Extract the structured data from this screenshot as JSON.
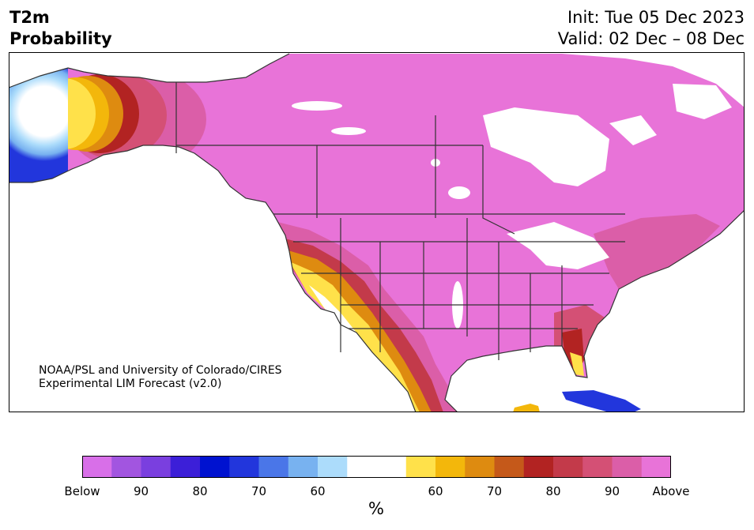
{
  "header": {
    "variable": "T2m",
    "product": "Probability",
    "init": "Init: Tue 05 Dec 2023",
    "valid": "Valid: 02 Dec – 08 Dec"
  },
  "credit": {
    "line1": "NOAA/PSL and University of Colorado/CIRES",
    "line2": "Experimental LIM Forecast (v2.0)"
  },
  "colorbar": {
    "unit": "%",
    "below_colors": [
      "#d86fe8",
      "#a255e0",
      "#7a3fdf",
      "#3c1fd8",
      "#0012d0",
      "#2236dc",
      "#4a76e8",
      "#78b2f0",
      "#acdcfb"
    ],
    "neutral_color": "#ffffff",
    "above_colors": [
      "#ffe14a",
      "#f3b70b",
      "#de8b10",
      "#c5591a",
      "#b22322",
      "#c33a4a",
      "#d45075",
      "#db5ea8",
      "#e873d8"
    ],
    "tick_labels": [
      "Below",
      "90",
      "80",
      "70",
      "60",
      "60",
      "70",
      "80",
      "90",
      "Above"
    ]
  },
  "map": {
    "region": "North America",
    "dominant_color": "#e873d8",
    "ocean_color": "#ffffff",
    "border_color": "#333333"
  }
}
